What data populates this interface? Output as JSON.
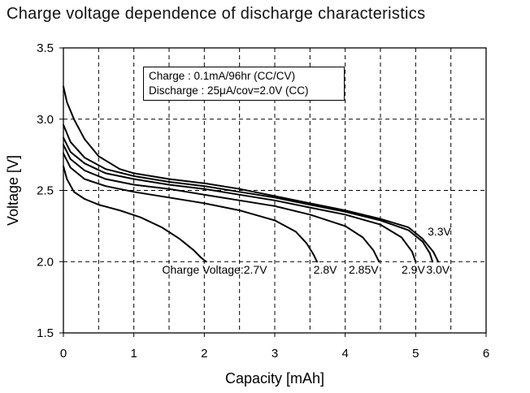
{
  "chart_data": {
    "type": "line",
    "title": "Charge voltage dependence of discharge characteristics",
    "xlabel": "Capacity [mAh]",
    "ylabel": "Voltage [V]",
    "xlim": [
      0,
      6
    ],
    "ylim": [
      1.5,
      3.5
    ],
    "xticks": [
      "0",
      "1",
      "2",
      "3",
      "4",
      "5",
      "6"
    ],
    "yticks": [
      "1.5",
      "2.0",
      "2.5",
      "3.0",
      "3.5"
    ],
    "grid": "dashed",
    "annotation": {
      "line1": "Charge : 0.1mA/96hr (CC/CV)",
      "line2": "Discharge : 25μA/cov=2.0V (CC)"
    },
    "series": [
      {
        "name": "Charge Voltage:2.7V",
        "label": "Charge Voltage:2.7V",
        "x": [
          0,
          0.05,
          0.15,
          0.3,
          0.5,
          0.8,
          1.1,
          1.4,
          1.65,
          1.85,
          1.95,
          2.0,
          2.03
        ],
        "y": [
          2.67,
          2.58,
          2.49,
          2.44,
          2.4,
          2.36,
          2.31,
          2.24,
          2.16,
          2.08,
          2.03,
          2.01,
          2.0
        ]
      },
      {
        "name": "2.8V",
        "label": "2.8V",
        "x": [
          0,
          0.1,
          0.3,
          0.6,
          1.0,
          1.5,
          2.0,
          2.5,
          3.0,
          3.3,
          3.45,
          3.55,
          3.6
        ],
        "y": [
          2.76,
          2.66,
          2.58,
          2.53,
          2.49,
          2.45,
          2.41,
          2.36,
          2.29,
          2.21,
          2.13,
          2.05,
          2.0
        ]
      },
      {
        "name": "2.85V",
        "label": "2.85V",
        "x": [
          0,
          0.1,
          0.3,
          0.6,
          1.0,
          1.5,
          2.0,
          2.5,
          3.0,
          3.5,
          4.0,
          4.25,
          4.4,
          4.48
        ],
        "y": [
          2.82,
          2.72,
          2.64,
          2.58,
          2.54,
          2.51,
          2.47,
          2.43,
          2.39,
          2.33,
          2.25,
          2.17,
          2.08,
          2.0
        ]
      },
      {
        "name": "2.9V",
        "label": "2.9V",
        "x": [
          0,
          0.1,
          0.3,
          0.6,
          1.0,
          1.5,
          2.0,
          2.5,
          3.0,
          3.5,
          4.0,
          4.5,
          4.8,
          4.95,
          5.0
        ],
        "y": [
          2.87,
          2.77,
          2.69,
          2.62,
          2.58,
          2.54,
          2.51,
          2.47,
          2.43,
          2.38,
          2.33,
          2.26,
          2.17,
          2.07,
          2.0
        ]
      },
      {
        "name": "3.0V",
        "label": "3.0V",
        "x": [
          0,
          0.1,
          0.3,
          0.6,
          1.0,
          1.5,
          2.0,
          2.5,
          3.0,
          3.5,
          4.0,
          4.5,
          4.9,
          5.1,
          5.2,
          5.24
        ],
        "y": [
          2.96,
          2.84,
          2.73,
          2.65,
          2.6,
          2.56,
          2.53,
          2.49,
          2.45,
          2.4,
          2.35,
          2.29,
          2.22,
          2.14,
          2.06,
          2.0
        ]
      },
      {
        "name": "3.3V",
        "label": "3.3V",
        "x": [
          0,
          0.05,
          0.15,
          0.3,
          0.5,
          0.8,
          1.0,
          1.5,
          2.0,
          2.5,
          3.0,
          3.5,
          4.0,
          4.5,
          4.9,
          5.1,
          5.25,
          5.32
        ],
        "y": [
          3.23,
          3.12,
          3.0,
          2.86,
          2.74,
          2.65,
          2.62,
          2.58,
          2.55,
          2.51,
          2.46,
          2.41,
          2.36,
          2.3,
          2.24,
          2.16,
          2.07,
          2.0
        ]
      }
    ]
  }
}
